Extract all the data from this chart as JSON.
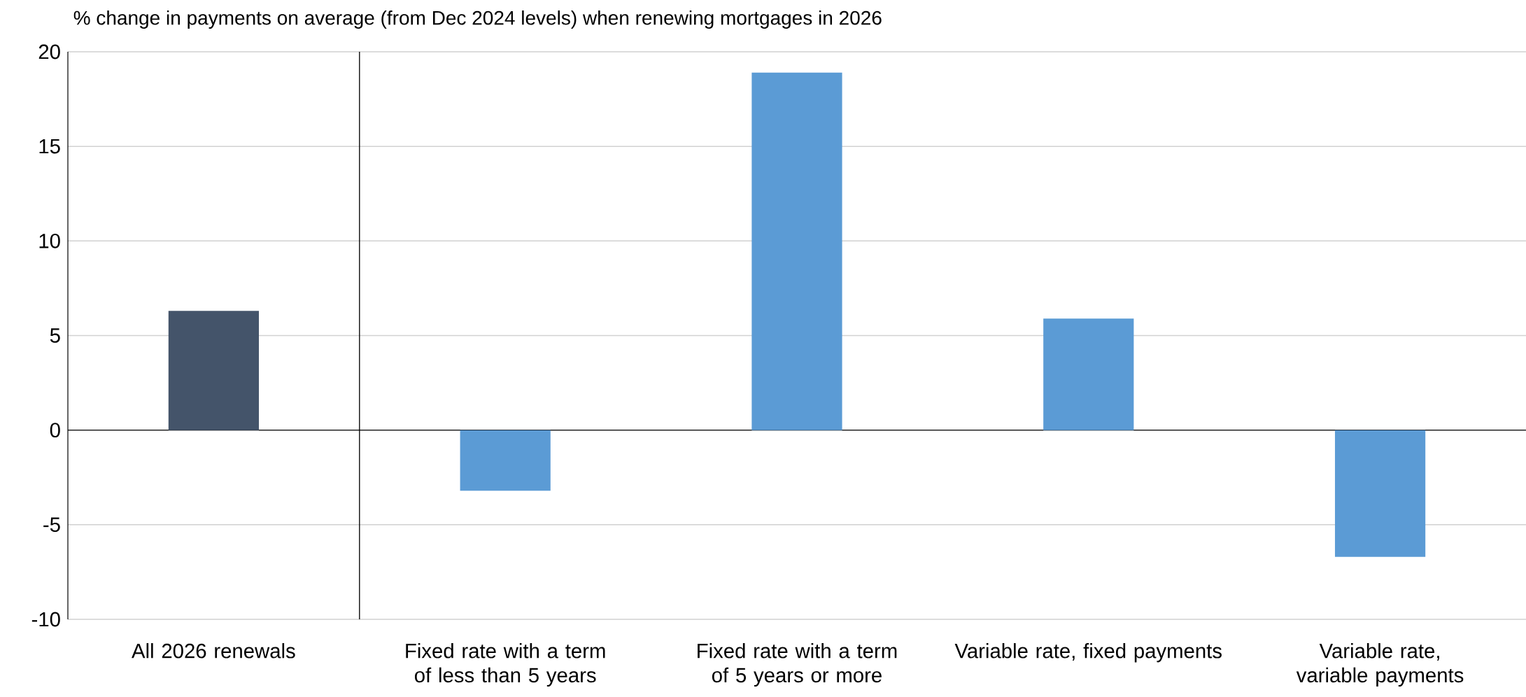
{
  "chart_data": {
    "type": "bar",
    "title": "% change in payments on average (from Dec 2024 levels) when renewing mortgages in 2026",
    "categories": [
      "All 2026 renewals",
      "Fixed rate with a term of less than 5 years",
      "Fixed rate with a term of 5 years or more",
      "Variable rate, fixed payments",
      "Variable rate, variable payments"
    ],
    "values": [
      6.3,
      -3.2,
      18.9,
      5.9,
      -6.7
    ],
    "colors": [
      "#44546a",
      "#5b9bd5",
      "#5b9bd5",
      "#5b9bd5",
      "#5b9bd5"
    ],
    "ylim": [
      -10,
      20
    ],
    "yticks": [
      -10,
      -5,
      0,
      5,
      10,
      15,
      20
    ],
    "grid": "y"
  }
}
